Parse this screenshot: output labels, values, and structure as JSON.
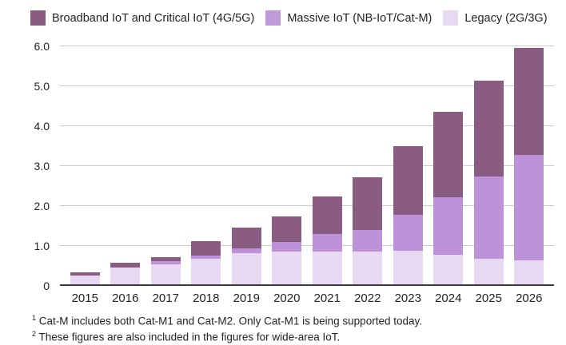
{
  "legend": [
    {
      "label": "Broadband IoT and Critical IoT (4G/5G)",
      "color": "#8b5c81"
    },
    {
      "label": "Massive IoT (NB-IoT/Cat-M)",
      "color": "#c098dc"
    },
    {
      "label": "Legacy (2G/3G)",
      "color": "#e7d9f2"
    }
  ],
  "chart_data": {
    "type": "bar",
    "stacked": true,
    "categories": [
      "2015",
      "2016",
      "2017",
      "2018",
      "2019",
      "2020",
      "2021",
      "2022",
      "2023",
      "2024",
      "2025",
      "2026"
    ],
    "series": [
      {
        "name": "Legacy (2G/3G)",
        "color": "#e7d9f2",
        "values": [
          0.25,
          0.45,
          0.53,
          0.67,
          0.81,
          0.85,
          0.84,
          0.85,
          0.86,
          0.77,
          0.67,
          0.62
        ]
      },
      {
        "name": "Massive IoT (NB-IoT/Cat-M)",
        "color": "#bd92d8",
        "values": [
          0.0,
          0.0,
          0.07,
          0.08,
          0.12,
          0.23,
          0.44,
          0.53,
          0.91,
          1.44,
          2.05,
          2.65
        ]
      },
      {
        "name": "Broadband IoT and Critical IoT (4G/5G)",
        "color": "#8b5c81",
        "values": [
          0.07,
          0.11,
          0.11,
          0.35,
          0.52,
          0.64,
          0.94,
          1.33,
          1.71,
          2.14,
          2.41,
          2.68
        ]
      }
    ],
    "totals": [
      0.32,
      0.56,
      0.71,
      1.1,
      1.45,
      1.72,
      2.22,
      2.71,
      3.48,
      4.35,
      5.13,
      5.95
    ],
    "ylim": [
      0,
      6
    ],
    "yticks": [
      {
        "value": 6,
        "label": "6.0"
      },
      {
        "value": 5,
        "label": "5.0"
      },
      {
        "value": 4,
        "label": "4.0"
      },
      {
        "value": 3,
        "label": "3.0"
      },
      {
        "value": 2,
        "label": "2.0"
      },
      {
        "value": 1,
        "label": "1.0"
      },
      {
        "value": 0,
        "label": "0"
      }
    ],
    "grid": true,
    "legend_position": "top"
  },
  "footnotes": [
    {
      "sup": "1",
      "text": "Cat-M includes both Cat-M1 and Cat-M2. Only Cat-M1 is being supported today."
    },
    {
      "sup": "2",
      "text": "These figures are also included in the figures for wide-area IoT."
    }
  ],
  "colors": {
    "gridline": "#c9c9c9",
    "axis": "#3d3d3d",
    "text": "#232323"
  }
}
